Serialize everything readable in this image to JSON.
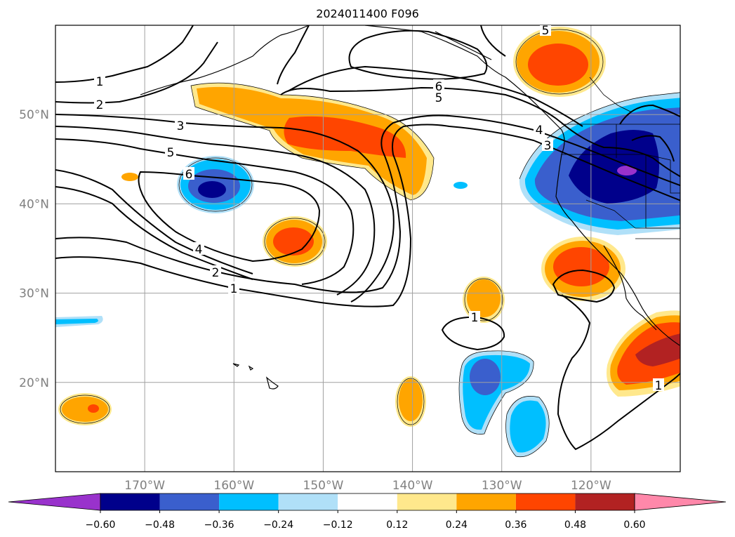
{
  "title": "2024011400 F096",
  "map": {
    "lon_range": [
      -180,
      -110
    ],
    "lat_range": [
      10,
      60
    ],
    "lon_ticks": [
      {
        "value": -170,
        "label": "170°W"
      },
      {
        "value": -160,
        "label": "160°W"
      },
      {
        "value": -150,
        "label": "150°W"
      },
      {
        "value": -140,
        "label": "140°W"
      },
      {
        "value": -130,
        "label": "130°W"
      },
      {
        "value": -120,
        "label": "120°W"
      }
    ],
    "lat_ticks": [
      {
        "value": 20,
        "label": "20°N"
      },
      {
        "value": 30,
        "label": "30°N"
      },
      {
        "value": 40,
        "label": "40°N"
      },
      {
        "value": 50,
        "label": "50°N"
      }
    ],
    "grid": true,
    "tick_label_color": "#808080"
  },
  "colorbar": {
    "levels": [
      "−0.60",
      "−0.48",
      "−0.36",
      "−0.24",
      "−0.12",
      "0.12",
      "0.24",
      "0.36",
      "0.48",
      "0.60"
    ],
    "colors": [
      "#9932cc",
      "#00008b",
      "#3a5fcd",
      "#00bfff",
      "#b0e0f8",
      "#ffffff",
      "#ffe88c",
      "#ffa500",
      "#ff4500",
      "#b22222",
      "#ff88aa"
    ],
    "extend": "both"
  },
  "contour_labels": [
    "1",
    "2",
    "3",
    "4",
    "5",
    "6"
  ]
}
